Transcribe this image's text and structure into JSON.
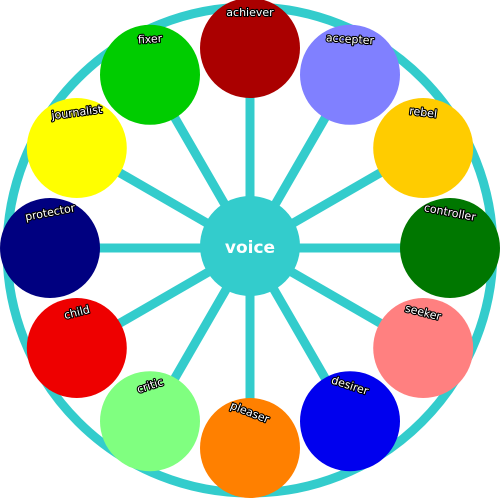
{
  "diagram": {
    "hub": {
      "label": "voice",
      "color": "#33cccc"
    },
    "ring_color": "#33cccc",
    "spoke_color": "#33cccc",
    "nodes": [
      {
        "name": "achiever",
        "color": "#aa0000"
      },
      {
        "name": "accepter",
        "color": "#8080ff"
      },
      {
        "name": "rebel",
        "color": "#ffcc00"
      },
      {
        "name": "controller",
        "color": "#007700"
      },
      {
        "name": "seeker",
        "color": "#ff8080"
      },
      {
        "name": "desirer",
        "color": "#0000ee"
      },
      {
        "name": "pleaser",
        "color": "#ff8000"
      },
      {
        "name": "critic",
        "color": "#80ff80"
      },
      {
        "name": "child",
        "color": "#ee0000"
      },
      {
        "name": "protector",
        "color": "#000080"
      },
      {
        "name": "journalist",
        "color": "#ffff00"
      },
      {
        "name": "fixer",
        "color": "#00cc00"
      }
    ]
  }
}
